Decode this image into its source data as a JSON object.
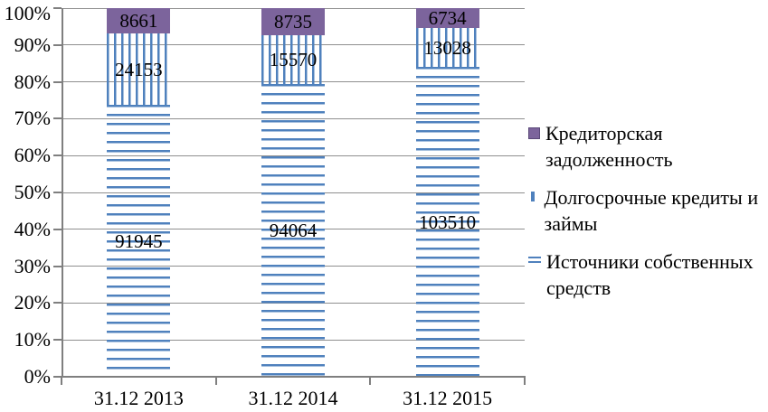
{
  "chart_data": {
    "type": "bar",
    "subtype": "stacked-100-percent",
    "title": "",
    "categories": [
      "31.12 2013",
      "31.12 2014",
      "31.12 2015"
    ],
    "series": [
      {
        "name": "Источники собственных средств",
        "values": [
          91945,
          94064,
          103510
        ],
        "fill": "pattern-horizontal-lines",
        "color": "#4f81bd"
      },
      {
        "name": "Долгосрочные кредиты и займы",
        "values": [
          24153,
          15570,
          13028
        ],
        "fill": "pattern-vertical-lines",
        "color": "#4f81bd"
      },
      {
        "name": "Кредиторская задолженность",
        "values": [
          8661,
          8735,
          6734
        ],
        "fill": "solid",
        "color": "#7c649c"
      }
    ],
    "data_labels_shown": true,
    "y_axis": {
      "min": 0,
      "max": 100,
      "step": 10,
      "tick_labels": [
        "0%",
        "10%",
        "20%",
        "30%",
        "40%",
        "50%",
        "60%",
        "70%",
        "80%",
        "90%",
        "100%"
      ]
    },
    "grid": true,
    "legend": {
      "position": "right",
      "items_top_to_bottom": [
        {
          "label": "Кредиторская задолженность",
          "marker": "solid"
        },
        {
          "label": "Долгосрочные кредиты и займы",
          "marker": "vlines"
        },
        {
          "label": "Источники собственных средств",
          "marker": "hlines"
        }
      ]
    },
    "colors": {
      "purple": "#7c649c",
      "blue": "#4f81bd",
      "gridline": "#8f8f8f",
      "axis": "#7f7f7f",
      "text": "#000000"
    }
  }
}
